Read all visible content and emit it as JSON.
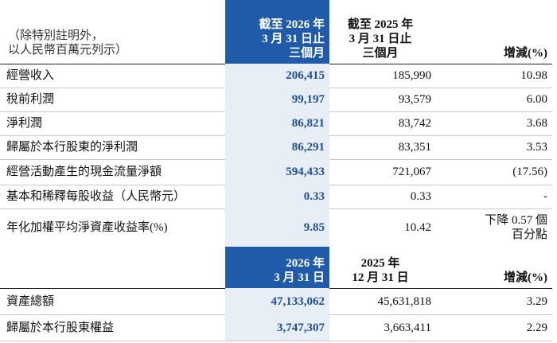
{
  "note": [
    "（除特別註明外，",
    "以人民幣百萬元列示）"
  ],
  "sections": [
    {
      "header": [
        [
          "截至 2026 年",
          "3 月 31 日止",
          "三個月"
        ],
        [
          "截至 2025 年",
          "3 月 31 日止",
          "三個月"
        ],
        [
          "增減(%)"
        ]
      ],
      "rows": [
        [
          "經營收入",
          "206,415",
          "185,990",
          "10.98"
        ],
        [
          "稅前利潤",
          "99,197",
          "93,579",
          "6.00"
        ],
        [
          "淨利潤",
          "86,821",
          "83,742",
          "3.68"
        ],
        [
          "歸屬於本行股東的淨利潤",
          "86,291",
          "83,351",
          "3.53"
        ],
        [
          "經營活動產生的現金流量淨額",
          "594,433",
          "721,067",
          "(17.56)"
        ],
        [
          "基本和稀釋每股收益（人民幣元）",
          "0.33",
          "0.33",
          "-"
        ],
        [
          "年化加權平均淨資產收益率(%)",
          "9.85",
          "10.42",
          [
            "下降 0.57 個",
            "百分點"
          ]
        ]
      ]
    },
    {
      "header": [
        [
          "2026 年",
          "3 月 31 日"
        ],
        [
          "2025 年",
          "12 月 31 日"
        ],
        [
          "增減(%)"
        ]
      ],
      "rows": [
        [
          "資產總額",
          "47,133,062",
          "45,631,818",
          "3.29"
        ],
        [
          "歸屬於本行股東權益",
          "3,747,307",
          "3,663,411",
          "2.29"
        ]
      ]
    }
  ]
}
